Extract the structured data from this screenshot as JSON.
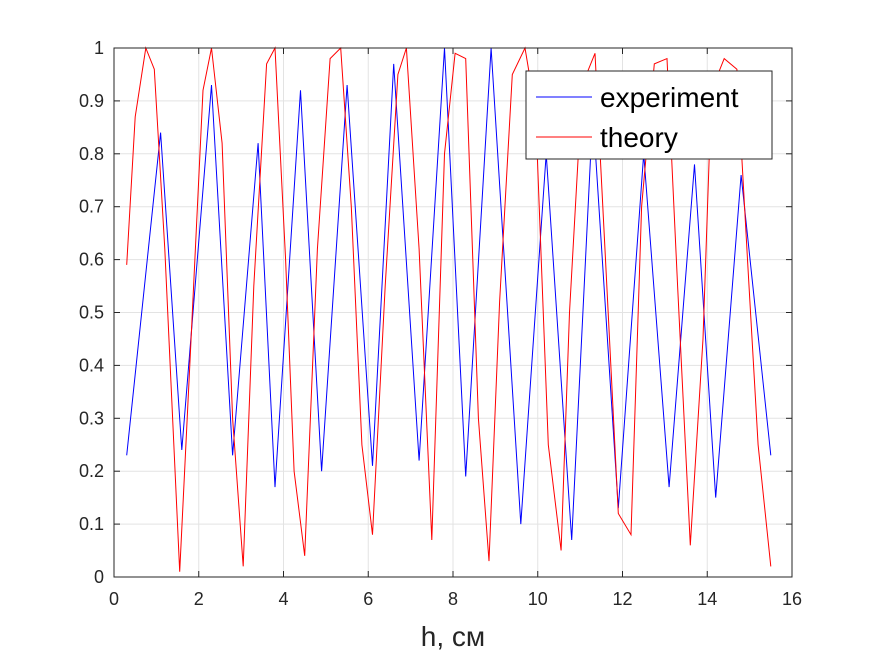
{
  "chart_data": {
    "type": "line",
    "title": "",
    "xlabel": "h, см",
    "ylabel": "",
    "xlim": [
      0,
      16
    ],
    "ylim": [
      0,
      1
    ],
    "x_ticks": [
      "0",
      "2",
      "4",
      "6",
      "8",
      "10",
      "12",
      "14",
      "16"
    ],
    "y_ticks": [
      "0",
      "0.1",
      "0.2",
      "0.3",
      "0.4",
      "0.5",
      "0.6",
      "0.7",
      "0.8",
      "0.9",
      "1"
    ],
    "grid": true,
    "legend_position": "top-right",
    "series": [
      {
        "name": "experiment",
        "color": "#0000ff",
        "x": [
          0.3,
          1.1,
          1.6,
          2.3,
          2.8,
          3.4,
          3.8,
          4.4,
          4.9,
          5.5,
          6.1,
          6.6,
          7.2,
          7.8,
          8.3,
          8.9,
          9.6,
          10.2,
          10.8,
          11.3,
          11.9,
          12.5,
          13.1,
          13.7,
          14.2,
          14.8,
          15.5
        ],
        "y": [
          0.23,
          0.84,
          0.24,
          0.93,
          0.23,
          0.82,
          0.17,
          0.92,
          0.2,
          0.93,
          0.21,
          0.97,
          0.22,
          1.0,
          0.19,
          1.0,
          0.1,
          0.8,
          0.07,
          0.88,
          0.13,
          0.8,
          0.17,
          0.78,
          0.15,
          0.76,
          0.23
        ]
      },
      {
        "name": "theory",
        "color": "#ff0000",
        "x": [
          0.3,
          0.5,
          0.75,
          0.95,
          1.2,
          1.55,
          1.8,
          2.1,
          2.3,
          2.55,
          2.8,
          3.05,
          3.3,
          3.6,
          3.8,
          4.05,
          4.25,
          4.5,
          4.8,
          5.1,
          5.35,
          5.6,
          5.85,
          6.1,
          6.4,
          6.7,
          6.9,
          7.2,
          7.5,
          7.8,
          8.05,
          8.3,
          8.6,
          8.85,
          9.1,
          9.4,
          9.7,
          9.95,
          10.25,
          10.55,
          10.75,
          11.05,
          11.35,
          11.6,
          11.9,
          12.2,
          12.45,
          12.75,
          13.05,
          13.3,
          13.6,
          13.9,
          14.1,
          14.4,
          14.7,
          14.95,
          15.2,
          15.5
        ],
        "y": [
          0.59,
          0.87,
          1.0,
          0.96,
          0.62,
          0.01,
          0.42,
          0.92,
          1.0,
          0.82,
          0.3,
          0.02,
          0.55,
          0.97,
          1.0,
          0.6,
          0.2,
          0.04,
          0.62,
          0.98,
          1.0,
          0.7,
          0.25,
          0.08,
          0.55,
          0.95,
          1.0,
          0.62,
          0.07,
          0.8,
          0.99,
          0.98,
          0.3,
          0.03,
          0.52,
          0.95,
          1.0,
          0.88,
          0.25,
          0.05,
          0.5,
          0.93,
          0.99,
          0.6,
          0.12,
          0.08,
          0.7,
          0.97,
          0.98,
          0.55,
          0.06,
          0.45,
          0.92,
          0.98,
          0.96,
          0.6,
          0.25,
          0.02
        ]
      }
    ]
  }
}
